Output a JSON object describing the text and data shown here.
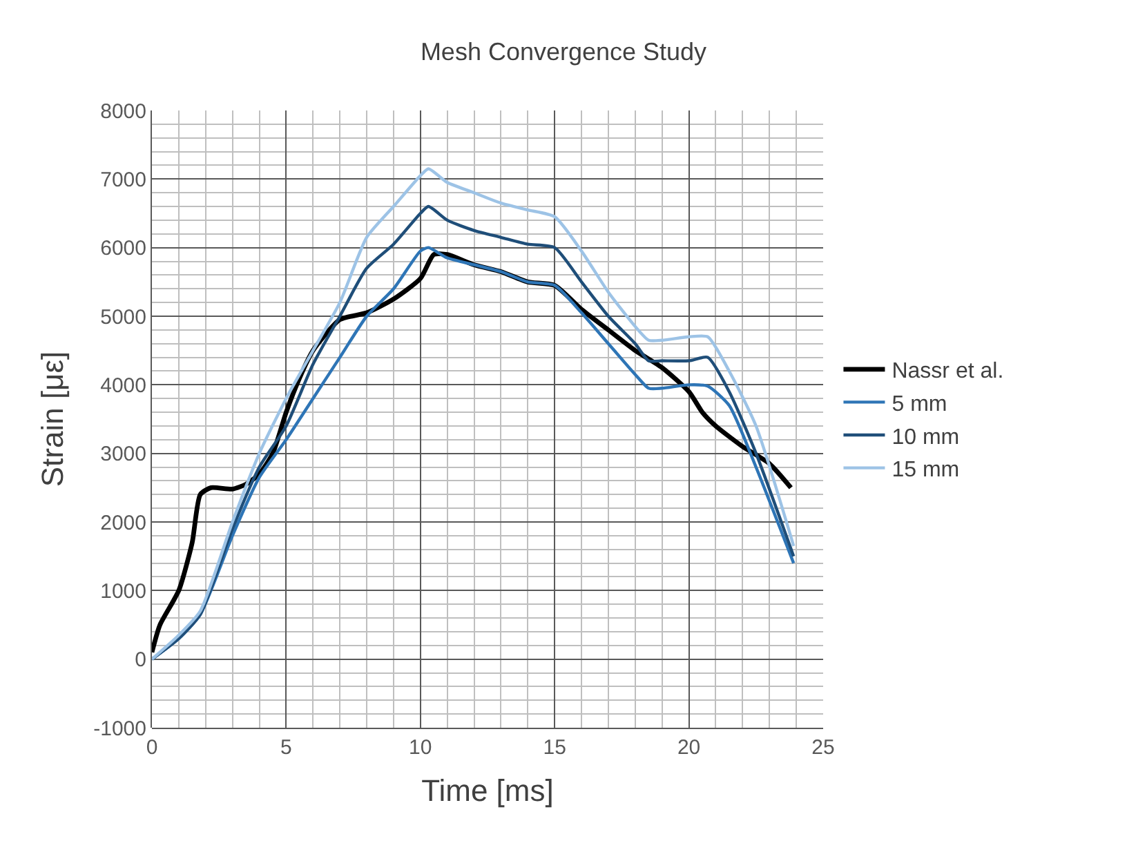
{
  "chart_data": {
    "type": "line",
    "title": "Mesh Convergence Study",
    "xlabel": "Time [ms]",
    "ylabel": "Strain [με]",
    "xlim": [
      0,
      25
    ],
    "xticks": [
      0,
      5,
      10,
      15,
      20,
      25
    ],
    "ylim": [
      -1000,
      8000
    ],
    "yticks": [
      -1000,
      0,
      1000,
      2000,
      3000,
      4000,
      5000,
      6000,
      7000,
      8000
    ],
    "grid": true,
    "legend": "right",
    "marker": "none",
    "line_style": "solid",
    "series": [
      {
        "name": "Nassr et al.",
        "color": "#000000",
        "x": [
          0,
          0.3,
          1,
          1.5,
          1.8,
          2.2,
          3,
          3.5,
          4,
          4.5,
          5,
          5.5,
          6,
          7,
          8,
          9,
          10,
          10.5,
          11,
          12,
          13,
          14,
          15,
          16,
          17,
          18,
          19,
          20,
          20.5,
          21,
          22,
          23,
          23.8
        ],
        "values": [
          100,
          500,
          1000,
          1700,
          2400,
          2500,
          2480,
          2550,
          2700,
          3000,
          3600,
          4100,
          4500,
          4950,
          5050,
          5250,
          5550,
          5900,
          5900,
          5750,
          5650,
          5500,
          5450,
          5100,
          4800,
          4500,
          4250,
          3900,
          3600,
          3400,
          3100,
          2850,
          2500
        ]
      },
      {
        "name": "5 mm",
        "color": "#2e75b6",
        "x": [
          0,
          1,
          1.8,
          3,
          4,
          5,
          6,
          7,
          8,
          9,
          10,
          10.3,
          11,
          12,
          13,
          14,
          15,
          16,
          17,
          18,
          18.5,
          19,
          20,
          20.7,
          21.5,
          22.5,
          23.9
        ],
        "values": [
          0,
          300,
          650,
          1800,
          2650,
          3200,
          3800,
          4400,
          5000,
          5400,
          5950,
          6000,
          5850,
          5750,
          5650,
          5500,
          5450,
          5050,
          4600,
          4150,
          3950,
          3950,
          4000,
          3980,
          3700,
          2800,
          1400
        ]
      },
      {
        "name": "10 mm",
        "color": "#1f4e79",
        "x": [
          0,
          1,
          1.8,
          3,
          4,
          5,
          6,
          7,
          8,
          9,
          10,
          10.3,
          11,
          12,
          13,
          14,
          15,
          16,
          17,
          18,
          18.5,
          19,
          20,
          20.7,
          21.5,
          22.5,
          23.9
        ],
        "values": [
          0,
          300,
          650,
          1900,
          2800,
          3400,
          4300,
          5000,
          5700,
          6050,
          6500,
          6600,
          6400,
          6250,
          6150,
          6050,
          6000,
          5500,
          5000,
          4600,
          4350,
          4350,
          4350,
          4400,
          3900,
          3000,
          1500
        ]
      },
      {
        "name": "15 mm",
        "color": "#9dc3e6",
        "x": [
          0,
          1,
          1.8,
          3,
          4,
          5,
          6,
          7,
          8,
          9,
          10,
          10.3,
          11,
          12,
          13,
          14,
          15,
          16,
          17,
          18,
          18.5,
          19,
          20,
          20.7,
          21.5,
          22.5,
          23.9
        ],
        "values": [
          0,
          350,
          700,
          2000,
          3000,
          3800,
          4500,
          5200,
          6150,
          6600,
          7050,
          7150,
          6950,
          6800,
          6650,
          6550,
          6450,
          5950,
          5350,
          4850,
          4650,
          4650,
          4700,
          4700,
          4200,
          3400,
          1650
        ]
      }
    ]
  }
}
